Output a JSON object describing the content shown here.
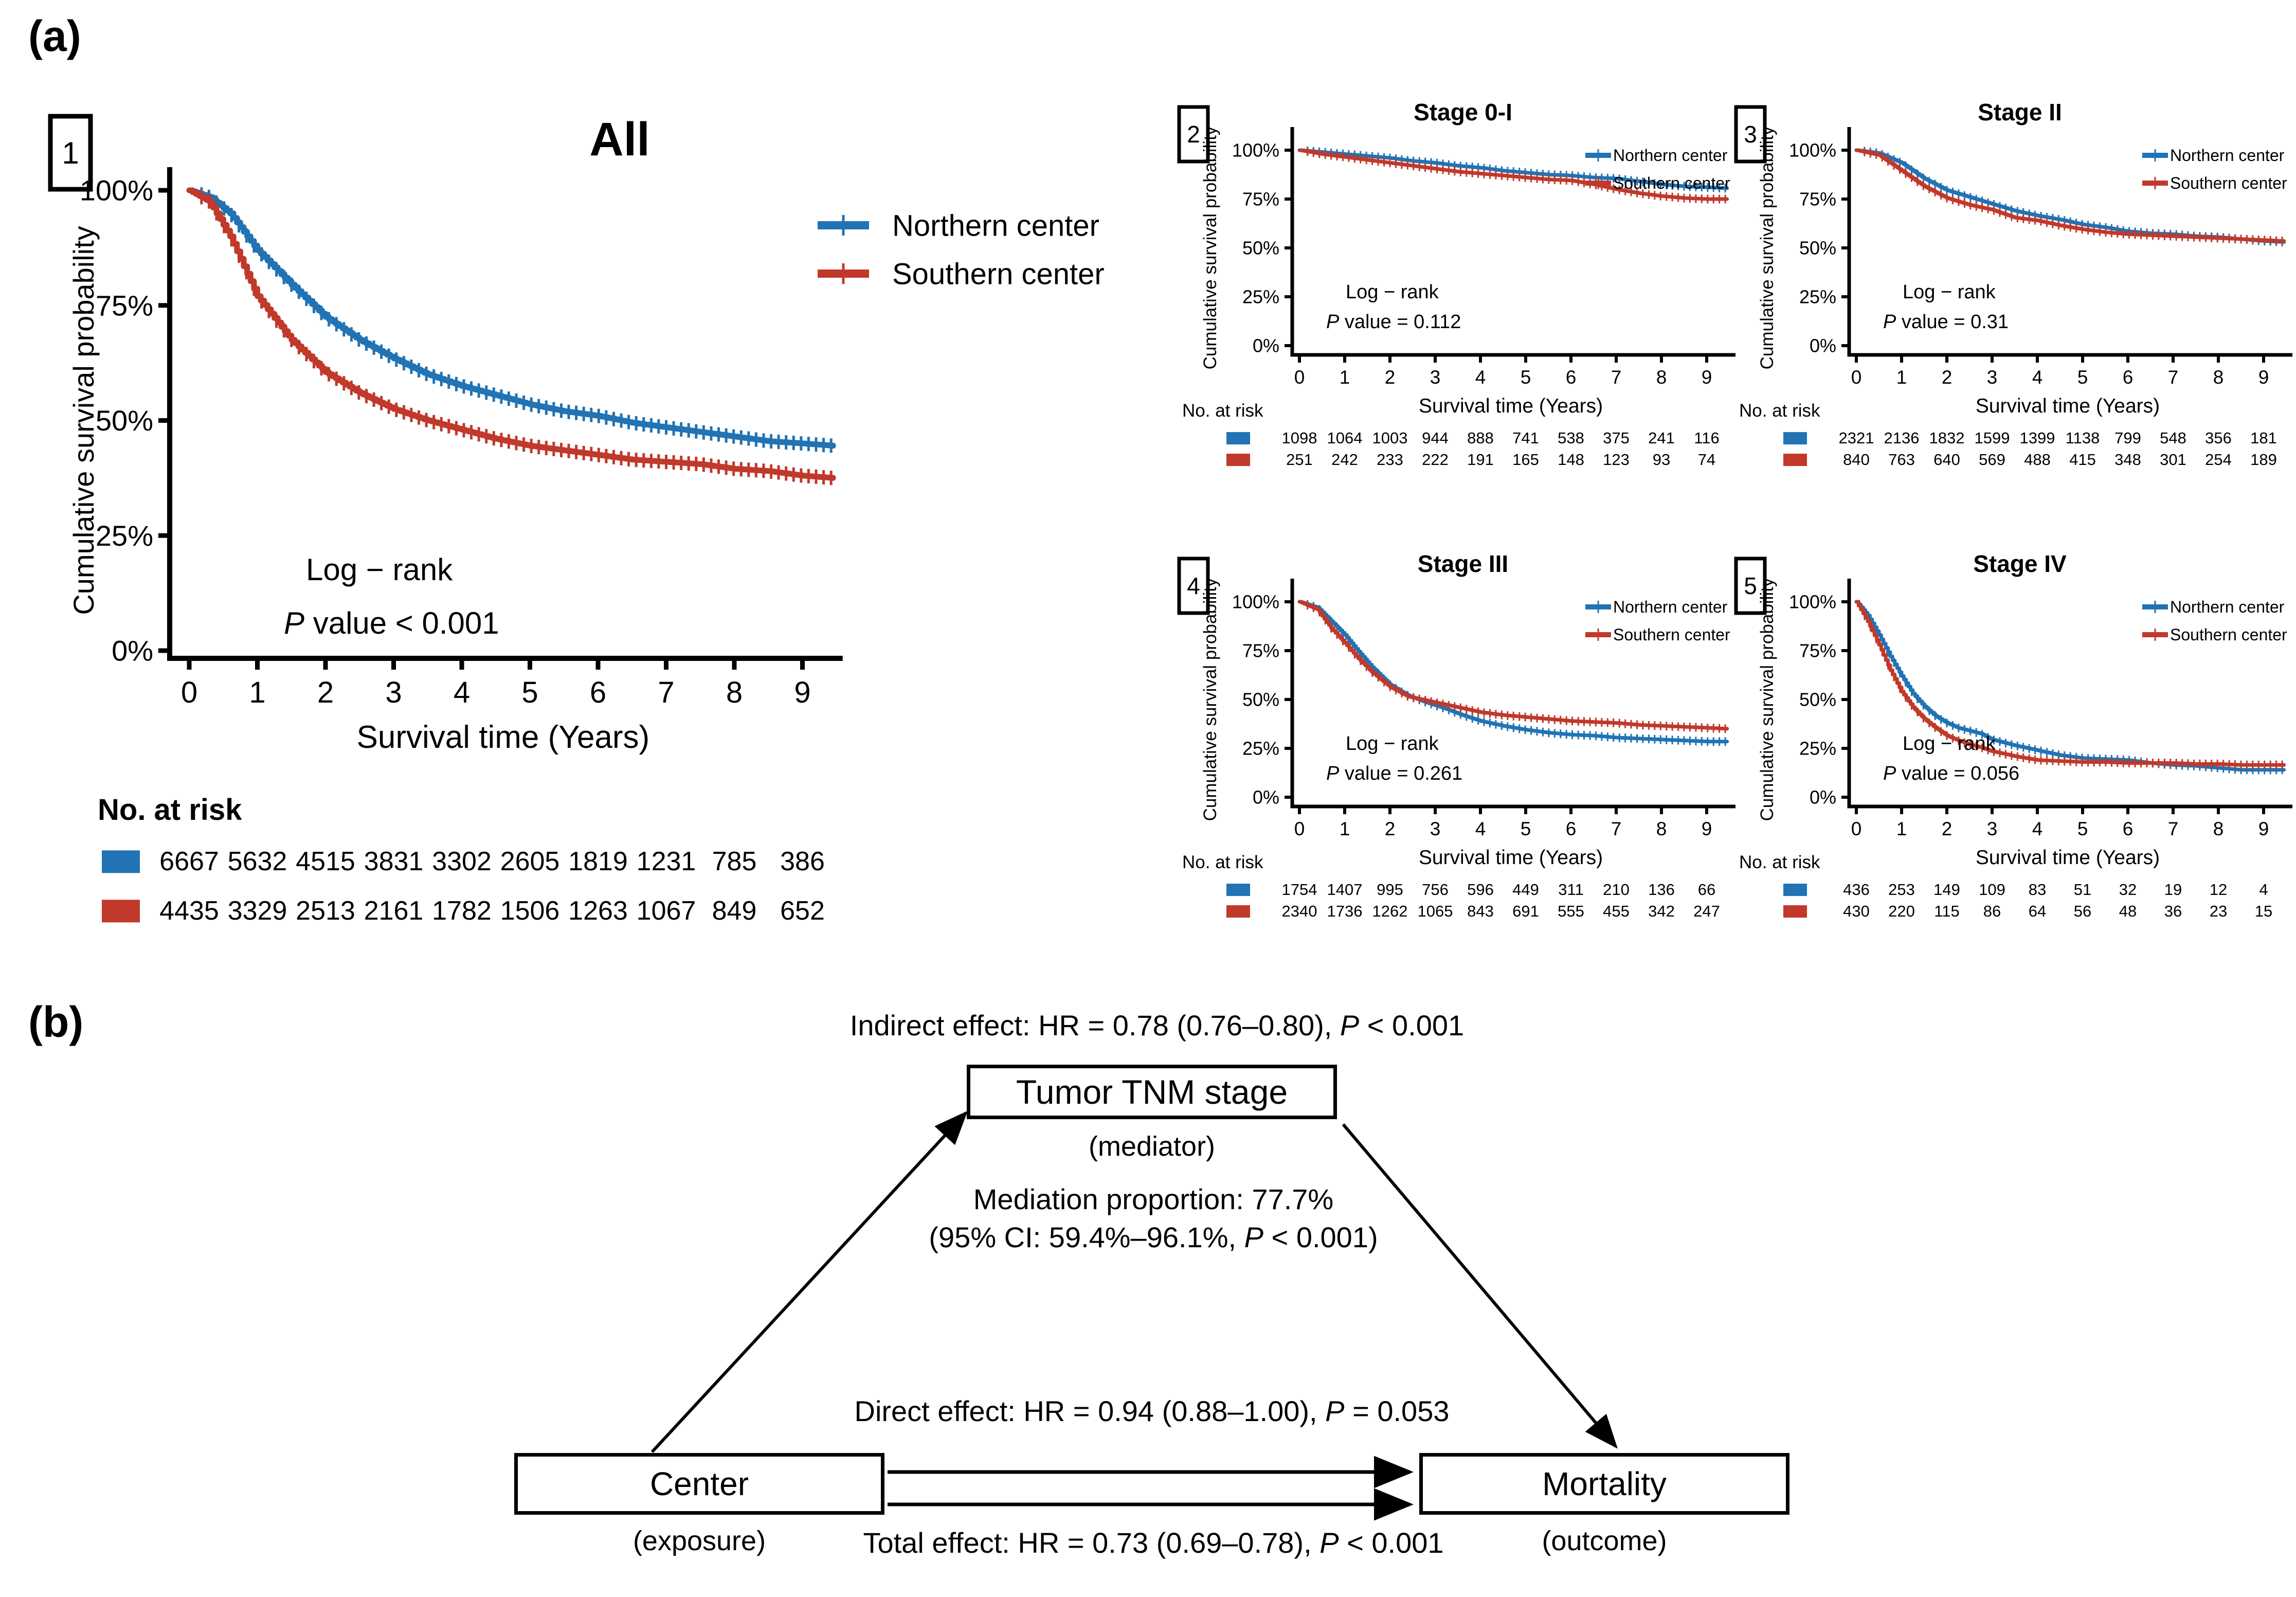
{
  "figure": {
    "panel_a_label": "(a)",
    "panel_b_label": "(b)"
  },
  "colors": {
    "northern": "#2173b4",
    "southern": "#c0392b",
    "ink": "#000000"
  },
  "axes": {
    "x_label": "Survival time (Years)",
    "y_label": "Cumulative survival probability",
    "x_ticks": [
      0,
      1,
      2,
      3,
      4,
      5,
      6,
      7,
      8,
      9
    ],
    "y_ticks": [
      0,
      25,
      50,
      75,
      100
    ],
    "y_suffix": "%",
    "x_max": 9.5
  },
  "risk_header": "No. at risk",
  "logrank_label": "Log − rank",
  "p_symbol": "P",
  "chart_data": [
    {
      "type": "line",
      "key": "all",
      "marker": "1",
      "title": "All",
      "p_text": " value < 0.001",
      "series": [
        {
          "name": "Northern center",
          "color_key": "northern",
          "x": [
            0,
            0.3,
            0.6,
            1,
            1.5,
            2,
            2.5,
            3,
            3.5,
            4,
            4.5,
            5,
            5.5,
            6,
            6.5,
            7,
            7.5,
            8,
            8.5,
            9,
            9.45
          ],
          "y_pct": [
            100,
            98.5,
            95,
            87,
            79.5,
            72.5,
            67.5,
            63.5,
            60,
            57.5,
            55.5,
            53.5,
            52,
            51,
            49.5,
            48.5,
            47.5,
            46.5,
            45.5,
            45,
            44.5
          ]
        },
        {
          "name": "Southern center",
          "color_key": "southern",
          "x": [
            0,
            0.3,
            0.6,
            1,
            1.5,
            2,
            2.5,
            3,
            3.5,
            4,
            4.5,
            5,
            5.5,
            6,
            6.5,
            7,
            7.5,
            8,
            8.5,
            9,
            9.45
          ],
          "y_pct": [
            100,
            97.5,
            90,
            77,
            67.5,
            60.5,
            56,
            52.5,
            50,
            48,
            46,
            44.5,
            43.5,
            42.5,
            41.5,
            41,
            40.5,
            39.5,
            39,
            38,
            37.5
          ]
        }
      ],
      "risk": [
        {
          "color_key": "northern",
          "values": [
            6667,
            5632,
            4515,
            3831,
            3302,
            2605,
            1819,
            1231,
            785,
            386
          ]
        },
        {
          "color_key": "southern",
          "values": [
            4435,
            3329,
            2513,
            2161,
            1782,
            1506,
            1263,
            1067,
            849,
            652
          ]
        }
      ]
    },
    {
      "type": "line",
      "key": "stage01",
      "marker": "2",
      "title": "Stage 0-I",
      "p_text": " value = 0.112",
      "series": [
        {
          "name": "Northern center",
          "color_key": "northern",
          "x": [
            0,
            0.5,
            1,
            1.5,
            2,
            2.5,
            3,
            3.5,
            4,
            4.5,
            5,
            5.5,
            6,
            6.5,
            7,
            7.5,
            8,
            8.5,
            9,
            9.45
          ],
          "y_pct": [
            100,
            99,
            98,
            97,
            96,
            94.5,
            93.5,
            92,
            91,
            89.5,
            88.5,
            87.5,
            87,
            86,
            85.5,
            84,
            82.5,
            81.5,
            81,
            80.5
          ]
        },
        {
          "name": "Southern center",
          "color_key": "southern",
          "x": [
            0,
            0.5,
            1,
            1.5,
            2,
            2.5,
            3,
            3.5,
            4,
            4.5,
            5,
            5.5,
            6,
            6.5,
            7,
            7.5,
            8,
            8.5,
            9,
            9.45
          ],
          "y_pct": [
            100,
            98,
            96.5,
            95,
            93.5,
            92,
            90.5,
            89,
            88,
            87,
            86,
            85,
            84.5,
            82.5,
            80,
            78,
            76.5,
            75.5,
            75,
            75
          ]
        }
      ],
      "risk": [
        {
          "color_key": "northern",
          "values": [
            1098,
            1064,
            1003,
            944,
            888,
            741,
            538,
            375,
            241,
            116
          ]
        },
        {
          "color_key": "southern",
          "values": [
            251,
            242,
            233,
            222,
            191,
            165,
            148,
            123,
            93,
            74
          ]
        }
      ]
    },
    {
      "type": "line",
      "key": "stage2",
      "marker": "3",
      "title": "Stage II",
      "p_text": " value = 0.31",
      "series": [
        {
          "name": "Northern center",
          "color_key": "northern",
          "x": [
            0,
            0.5,
            1,
            1.5,
            2,
            2.5,
            3,
            3.5,
            4,
            4.5,
            5,
            5.5,
            6,
            6.5,
            7,
            7.5,
            8,
            8.5,
            9,
            9.45
          ],
          "y_pct": [
            100,
            98.5,
            93.5,
            85.5,
            79.5,
            76,
            72.5,
            69,
            66.5,
            64.5,
            62,
            60.5,
            58.5,
            57.5,
            57,
            56,
            55.5,
            54.5,
            53.5,
            53
          ]
        },
        {
          "name": "Southern center",
          "color_key": "southern",
          "x": [
            0,
            0.5,
            1,
            1.5,
            2,
            2.5,
            3,
            3.5,
            4,
            4.5,
            5,
            5.5,
            6,
            6.5,
            7,
            7.5,
            8,
            8.5,
            9,
            9.45
          ],
          "y_pct": [
            100,
            97.5,
            89.5,
            81.5,
            75.5,
            72,
            69.5,
            65.5,
            64,
            61.5,
            59.5,
            58,
            57,
            56.5,
            56,
            55.5,
            55,
            54.5,
            54,
            53.5
          ]
        }
      ],
      "risk": [
        {
          "color_key": "northern",
          "values": [
            2321,
            2136,
            1832,
            1599,
            1399,
            1138,
            799,
            548,
            356,
            181
          ]
        },
        {
          "color_key": "southern",
          "values": [
            840,
            763,
            640,
            569,
            488,
            415,
            348,
            301,
            254,
            189
          ]
        }
      ]
    },
    {
      "type": "line",
      "key": "stage3",
      "marker": "4",
      "title": "Stage III",
      "p_text": " value = 0.261",
      "series": [
        {
          "name": "Northern center",
          "color_key": "northern",
          "x": [
            0,
            0.4,
            0.7,
            1,
            1.3,
            1.6,
            2,
            2.4,
            2.8,
            3.2,
            3.6,
            4,
            4.5,
            5,
            5.5,
            6,
            6.5,
            7,
            7.5,
            8,
            8.5,
            9,
            9.45
          ],
          "y_pct": [
            100,
            97,
            90,
            83,
            74.5,
            66.5,
            57.5,
            52,
            48.5,
            45.5,
            42,
            39,
            36.5,
            34.5,
            33,
            32,
            31.5,
            30.5,
            30,
            29.5,
            29,
            28.5,
            28.5
          ]
        },
        {
          "name": "Southern center",
          "color_key": "southern",
          "x": [
            0,
            0.4,
            0.7,
            1,
            1.3,
            1.6,
            2,
            2.4,
            2.8,
            3.2,
            3.6,
            4,
            4.5,
            5,
            5.5,
            6,
            6.5,
            7,
            7.5,
            8,
            8.5,
            9,
            9.45
          ],
          "y_pct": [
            100,
            96,
            86.5,
            79,
            71,
            64,
            56.5,
            51.5,
            49.5,
            47.5,
            45.5,
            43.5,
            42,
            41,
            40,
            39,
            38.5,
            38,
            37,
            36.5,
            36,
            35.5,
            35
          ]
        }
      ],
      "risk": [
        {
          "color_key": "northern",
          "values": [
            1754,
            1407,
            995,
            756,
            596,
            449,
            311,
            210,
            136,
            66
          ]
        },
        {
          "color_key": "southern",
          "values": [
            2340,
            1736,
            1262,
            1065,
            843,
            691,
            555,
            455,
            342,
            247
          ]
        }
      ]
    },
    {
      "type": "line",
      "key": "stage4",
      "marker": "5",
      "title": "Stage IV",
      "p_text": " value = 0.056",
      "series": [
        {
          "name": "Northern center",
          "color_key": "northern",
          "x": [
            0,
            0.25,
            0.5,
            0.75,
            1,
            1.25,
            1.5,
            1.75,
            2,
            2.25,
            2.5,
            2.75,
            3,
            3.5,
            4,
            4.5,
            5,
            5.5,
            6,
            6.5,
            7,
            7.5,
            8,
            8.5,
            9.45
          ],
          "y_pct": [
            100,
            93,
            83,
            72,
            62,
            53,
            46.5,
            41.5,
            38,
            35.5,
            34,
            32.5,
            29.5,
            26.5,
            24,
            21.5,
            20,
            19.5,
            19,
            17.5,
            16.5,
            16,
            15,
            14,
            14
          ]
        },
        {
          "name": "Southern center",
          "color_key": "southern",
          "x": [
            0,
            0.25,
            0.5,
            0.75,
            1,
            1.25,
            1.5,
            1.75,
            2,
            2.25,
            2.5,
            2.75,
            3,
            3.5,
            4,
            4.5,
            5,
            5.5,
            6,
            6.5,
            7,
            7.5,
            8,
            8.5,
            9.45
          ],
          "y_pct": [
            100,
            90,
            78,
            65,
            54,
            46,
            40,
            35.5,
            31.5,
            29,
            27,
            25.5,
            23.5,
            21,
            19,
            18.5,
            18,
            18,
            17.5,
            17.5,
            17.5,
            17,
            17,
            16.5,
            16.5
          ]
        }
      ],
      "risk": [
        {
          "color_key": "northern",
          "values": [
            436,
            253,
            149,
            109,
            83,
            51,
            32,
            19,
            12,
            4
          ]
        },
        {
          "color_key": "southern",
          "values": [
            430,
            220,
            115,
            86,
            64,
            56,
            48,
            36,
            23,
            15
          ]
        }
      ]
    }
  ],
  "panel_b": {
    "indirect": {
      "before": "Indirect effect: HR = 0.78 (0.76–0.80), ",
      "p": "P",
      "after": " < 0.001"
    },
    "mediator_box": "Tumor TNM stage",
    "mediator_caption": "(mediator)",
    "mediation_line1": "Mediation proportion: 77.7%",
    "mediation_line2": {
      "before": "(95% CI: 59.4%–96.1%, ",
      "p": "P",
      "after": " < 0.001)"
    },
    "direct": {
      "before": "Direct effect: HR = 0.94 (0.88–1.00), ",
      "p": "P",
      "after": " = 0.053"
    },
    "total": {
      "before": "Total effect: HR = 0.73 (0.69–0.78), ",
      "p": "P",
      "after": " < 0.001"
    },
    "exposure_box": "Center",
    "exposure_caption": "(exposure)",
    "outcome_box": "Mortality",
    "outcome_caption": "(outcome)"
  }
}
